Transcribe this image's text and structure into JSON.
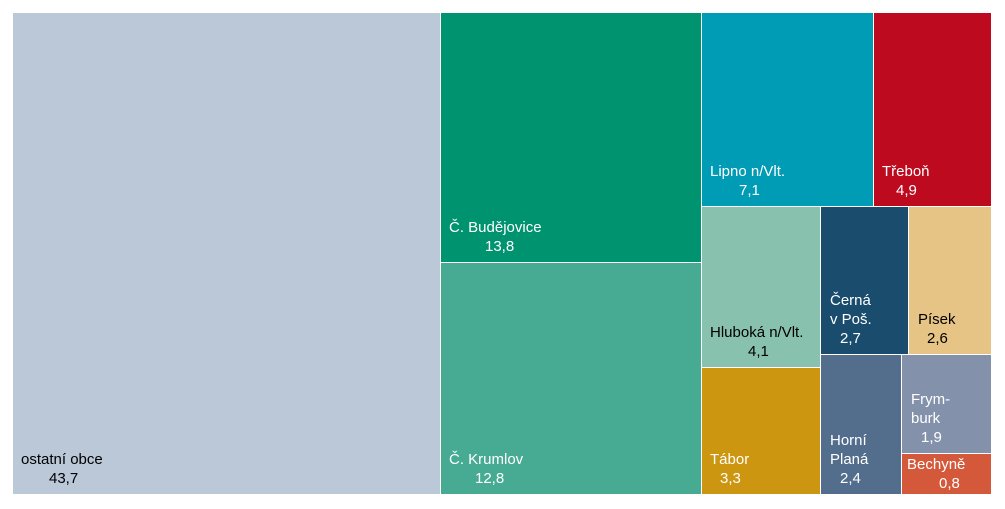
{
  "chart_data": {
    "type": "treemap",
    "decimal_separator": ",",
    "items": [
      {
        "name": "ostatní obce",
        "value": 43.7,
        "color": "#bac8d8",
        "text_color": "#000000"
      },
      {
        "name": "Č. Budějovice",
        "value": 13.8,
        "color": "#00936f",
        "text_color": "#ffffff"
      },
      {
        "name": "Č. Krumlov",
        "value": 12.8,
        "color": "#47ab93",
        "text_color": "#ffffff"
      },
      {
        "name": "Lipno n/Vlt.",
        "value": 7.1,
        "color": "#009bb4",
        "text_color": "#ffffff"
      },
      {
        "name": "Třeboň",
        "value": 4.9,
        "color": "#bd0a1f",
        "text_color": "#ffffff"
      },
      {
        "name": "Hluboká n/Vlt.",
        "value": 4.1,
        "color": "#88c2ae",
        "text_color": "#000000"
      },
      {
        "name": "Černá v Poš.",
        "value": 2.7,
        "color": "#1a4c6e",
        "text_color": "#ffffff"
      },
      {
        "name": "Písek",
        "value": 2.6,
        "color": "#e6c485",
        "text_color": "#000000"
      },
      {
        "name": "Tábor",
        "value": 3.3,
        "color": "#cd9611",
        "text_color": "#ffffff"
      },
      {
        "name": "Horní Planá",
        "value": 2.4,
        "color": "#536d8d",
        "text_color": "#ffffff"
      },
      {
        "name": "Frym-burk",
        "value": 1.9,
        "color": "#8392aa",
        "text_color": "#ffffff"
      },
      {
        "name": "Bechyně",
        "value": 0.8,
        "color": "#d4583a",
        "text_color": "#ffffff"
      }
    ]
  }
}
